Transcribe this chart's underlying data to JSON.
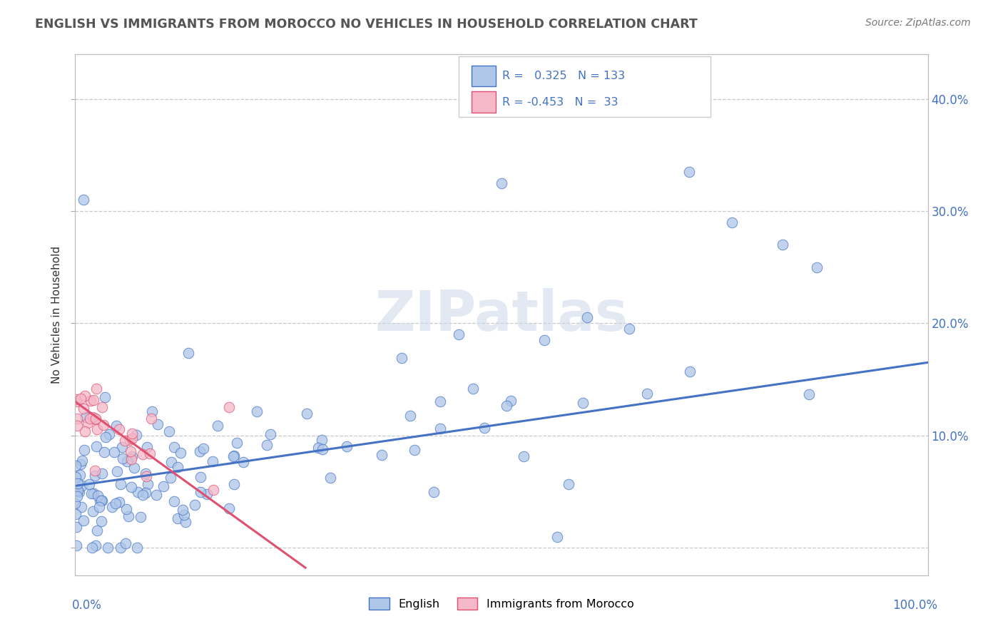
{
  "title": "ENGLISH VS IMMIGRANTS FROM MOROCCO NO VEHICLES IN HOUSEHOLD CORRELATION CHART",
  "source": "Source: ZipAtlas.com",
  "ylabel": "No Vehicles in Household",
  "watermark": "ZIPatlas",
  "legend_entries": [
    {
      "label": "English",
      "R": "0.325",
      "N": "133",
      "color": "#aec6e8",
      "line_color": "#4472c4"
    },
    {
      "label": "Immigrants from Morocco",
      "R": "-0.453",
      "N": "33",
      "color": "#f4b8c8",
      "line_color": "#e05070"
    }
  ],
  "ytick_vals": [
    0.0,
    0.1,
    0.2,
    0.3,
    0.4
  ],
  "ytick_labels_right": [
    "",
    "10.0%",
    "20.0%",
    "30.0%",
    "40.0%"
  ],
  "xlim": [
    0.0,
    1.0
  ],
  "ylim": [
    -0.025,
    0.44
  ],
  "background_color": "#ffffff",
  "grid_color": "#c8c8c8",
  "en_line_x0": 0.0,
  "en_line_x1": 1.0,
  "en_line_y0": 0.055,
  "en_line_y1": 0.165,
  "mo_line_x0": 0.0,
  "mo_line_x1": 0.27,
  "mo_line_y0": 0.13,
  "mo_line_y1": -0.018
}
